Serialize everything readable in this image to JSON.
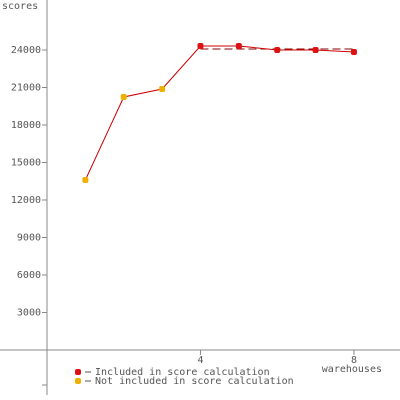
{
  "chart_data": {
    "type": "line",
    "y_label": "scores",
    "x_label": "warehouses",
    "x": [
      1,
      2,
      3,
      4,
      5,
      6,
      7,
      8
    ],
    "values": [
      13600,
      20240,
      20880,
      24320,
      24320,
      24000,
      24000,
      23840
    ],
    "line_color": "#cc0000",
    "point_series": [
      1,
      1,
      1,
      0,
      0,
      0,
      0,
      0
    ],
    "series": [
      {
        "name": "Included in score calculation",
        "color": "#dd1111"
      },
      {
        "name": "Not included in score calculation",
        "color": "#f0b000"
      }
    ],
    "ref_line": {
      "xrange": [
        4,
        8
      ],
      "value": 24080,
      "color": "#880000",
      "style": "dashed"
    },
    "xlim": [
      0,
      9.2
    ],
    "ylim": [
      -3600,
      28000
    ],
    "xticks": [
      4,
      8
    ],
    "yticks": [
      3000,
      6000,
      9000,
      12000,
      15000,
      18000,
      21000,
      24000
    ],
    "grid": false
  }
}
